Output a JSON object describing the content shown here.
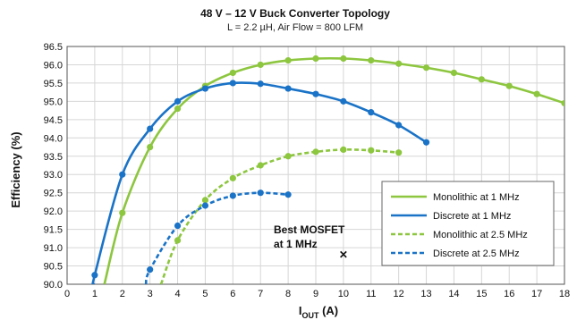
{
  "chart_data": {
    "type": "line",
    "title": "48 V – 12 V Buck Converter Topology",
    "subtitle": "L = 2.2 µH, Air Flow = 800 LFM",
    "xlabel_main": "I",
    "xlabel_sub": "OUT",
    "xlabel_unit": " (A)",
    "ylabel": "Efficiency (%)",
    "xlim": [
      0,
      18
    ],
    "ylim": [
      90.0,
      96.5
    ],
    "x_ticks": [
      0,
      1,
      2,
      3,
      4,
      5,
      6,
      7,
      8,
      9,
      10,
      11,
      12,
      13,
      14,
      15,
      16,
      17,
      18
    ],
    "y_ticks": [
      "90.0",
      "90.5",
      "91.0",
      "91.5",
      "92.0",
      "92.5",
      "93.0",
      "93.5",
      "94.0",
      "94.5",
      "95.0",
      "95.5",
      "96.0",
      "96.5"
    ],
    "grid": true,
    "legend_position": "lower-right",
    "annotation": {
      "line1": "Best MOSFET",
      "line2": "at 1 MHz",
      "marker": "✕",
      "x": 10,
      "y": 90.85
    },
    "series": [
      {
        "name": "Monolithic at 1 MHz",
        "color": "#8dc63f",
        "dash": "solid",
        "points": [
          [
            1.35,
            89.9
          ],
          [
            2,
            91.95
          ],
          [
            3,
            93.75
          ],
          [
            4,
            94.8
          ],
          [
            5,
            95.42
          ],
          [
            6,
            95.78
          ],
          [
            7,
            96.0
          ],
          [
            8,
            96.12
          ],
          [
            9,
            96.17
          ],
          [
            10,
            96.17
          ],
          [
            11,
            96.12
          ],
          [
            12,
            96.03
          ],
          [
            13,
            95.92
          ],
          [
            14,
            95.78
          ],
          [
            15,
            95.6
          ],
          [
            16,
            95.42
          ],
          [
            17,
            95.2
          ],
          [
            18,
            94.95
          ]
        ],
        "markers": [
          [
            2,
            91.95
          ],
          [
            3,
            93.75
          ],
          [
            4,
            94.8
          ],
          [
            5,
            95.42
          ],
          [
            6,
            95.78
          ],
          [
            7,
            96.0
          ],
          [
            8,
            96.12
          ],
          [
            9,
            96.17
          ],
          [
            10,
            96.17
          ],
          [
            11,
            96.12
          ],
          [
            12,
            96.03
          ],
          [
            13,
            95.92
          ],
          [
            14,
            95.78
          ],
          [
            15,
            95.6
          ],
          [
            16,
            95.42
          ],
          [
            17,
            95.2
          ],
          [
            18,
            94.95
          ]
        ]
      },
      {
        "name": "Discrete at 1 MHz",
        "color": "#1a73c7",
        "dash": "solid",
        "points": [
          [
            0.97,
            89.9
          ],
          [
            1,
            90.25
          ],
          [
            2,
            93.0
          ],
          [
            3,
            94.25
          ],
          [
            4,
            95.0
          ],
          [
            5,
            95.35
          ],
          [
            6,
            95.5
          ],
          [
            7,
            95.48
          ],
          [
            8,
            95.35
          ],
          [
            9,
            95.2
          ],
          [
            10,
            95.0
          ],
          [
            11,
            94.7
          ],
          [
            12,
            94.35
          ],
          [
            13,
            93.88
          ]
        ],
        "markers": [
          [
            1,
            90.25
          ],
          [
            2,
            93.0
          ],
          [
            3,
            94.25
          ],
          [
            4,
            95.0
          ],
          [
            5,
            95.35
          ],
          [
            6,
            95.5
          ],
          [
            7,
            95.48
          ],
          [
            8,
            95.35
          ],
          [
            9,
            95.2
          ],
          [
            10,
            95.0
          ],
          [
            11,
            94.7
          ],
          [
            12,
            94.35
          ],
          [
            13,
            93.88
          ]
        ]
      },
      {
        "name": "Monolithic at 2.5 MHz",
        "color": "#8dc63f",
        "dash": "dashed",
        "points": [
          [
            3.4,
            89.9
          ],
          [
            4,
            91.2
          ],
          [
            5,
            92.3
          ],
          [
            6,
            92.9
          ],
          [
            7,
            93.25
          ],
          [
            8,
            93.5
          ],
          [
            9,
            93.62
          ],
          [
            10,
            93.68
          ],
          [
            11,
            93.66
          ],
          [
            12,
            93.6
          ]
        ],
        "markers": [
          [
            4,
            91.2
          ],
          [
            5,
            92.3
          ],
          [
            6,
            92.9
          ],
          [
            7,
            93.25
          ],
          [
            8,
            93.5
          ],
          [
            9,
            93.62
          ],
          [
            10,
            93.68
          ],
          [
            11,
            93.66
          ],
          [
            12,
            93.6
          ]
        ]
      },
      {
        "name": "Discrete at 2.5 MHz",
        "color": "#1a73c7",
        "dash": "dashed",
        "points": [
          [
            2.85,
            89.9
          ],
          [
            3,
            90.4
          ],
          [
            4,
            91.6
          ],
          [
            5,
            92.15
          ],
          [
            6,
            92.42
          ],
          [
            7,
            92.5
          ],
          [
            8,
            92.45
          ]
        ],
        "markers": [
          [
            3,
            90.4
          ],
          [
            4,
            91.6
          ],
          [
            5,
            92.15
          ],
          [
            6,
            92.42
          ],
          [
            7,
            92.5
          ],
          [
            8,
            92.45
          ]
        ]
      }
    ]
  }
}
